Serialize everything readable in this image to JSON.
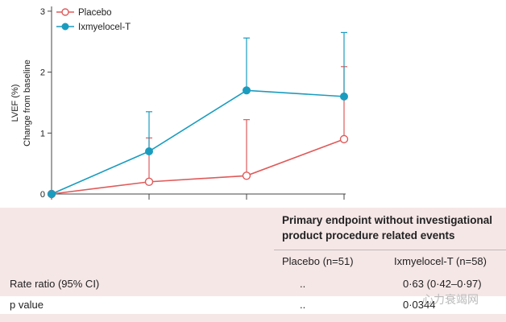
{
  "chart_data": {
    "type": "line",
    "ylabel_line1": "LVEF (%)",
    "ylabel_line2": "Change from baseline",
    "x": [
      0,
      1,
      2,
      3
    ],
    "ylim": [
      0,
      3
    ],
    "yticks": [
      0,
      1,
      2,
      3
    ],
    "grid": false,
    "legend_position": "top-left",
    "series": [
      {
        "name": "Placebo",
        "color": "#e05a5a",
        "marker": "open-circle",
        "values": [
          0,
          0.2,
          0.3,
          0.9
        ],
        "error_upper": [
          0,
          0.92,
          1.22,
          2.09
        ]
      },
      {
        "name": "Ixmyelocel-T",
        "color": "#1a9cbf",
        "marker": "filled-circle",
        "values": [
          0,
          0.7,
          1.7,
          1.6
        ],
        "error_upper": [
          0,
          1.35,
          2.56,
          2.65
        ]
      }
    ]
  },
  "table": {
    "header": "Primary endpoint without investigational product procedure related events",
    "col_placebo": "Placebo (n=51)",
    "col_ixmyelocel": "Ixmyelocel-T (n=58)",
    "rows": [
      {
        "label": "Rate ratio (95% CI)",
        "placebo": "..",
        "ixmyelocel": "0·63 (0·42–0·97)"
      },
      {
        "label": "p value",
        "placebo": "..",
        "ixmyelocel": "0·0344"
      }
    ]
  },
  "watermark": "心力衰竭网"
}
